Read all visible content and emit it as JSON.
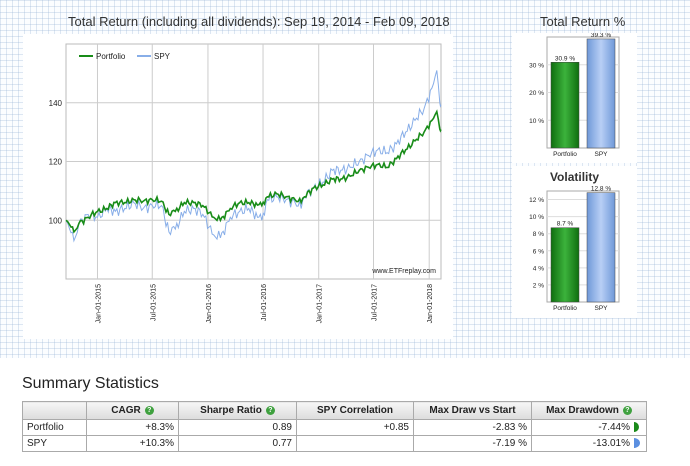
{
  "main_chart": {
    "title": "Total Return (including all dividends): Sep 19, 2014 - Feb 09, 2018",
    "watermark": "www.ETFreplay.com",
    "legend": [
      "Portfolio",
      "SPY"
    ],
    "y_ticks": [
      "100",
      "120",
      "140"
    ],
    "x_ticks": [
      "Jan-01-2015",
      "Jul-01-2015",
      "Jan-01-2016",
      "Jul-01-2016",
      "Jan-01-2017",
      "Jul-01-2017",
      "Jan-01-2018"
    ]
  },
  "colors": {
    "portfolio": "#188c18",
    "spy": "#88aee8",
    "help_icon": "#3fa13f",
    "pie_green": "#1a8a1a",
    "pie_blue": "#5b8fe0"
  },
  "chart_data": [
    {
      "type": "line",
      "title": "Total Return (including all dividends): Sep 19, 2014 - Feb 09, 2018",
      "x_unit": "date",
      "ylim": [
        80,
        160
      ],
      "y_ticks": [
        100,
        120,
        140
      ],
      "grid": true,
      "legend_position": "top-left",
      "series": [
        {
          "name": "Portfolio",
          "color": "#188c18",
          "points": [
            [
              "2014-09-19",
              100
            ],
            [
              "2014-10-01",
              98.5
            ],
            [
              "2014-10-15",
              96
            ],
            [
              "2014-11-01",
              99
            ],
            [
              "2014-12-01",
              101
            ],
            [
              "2015-01-01",
              103
            ],
            [
              "2015-02-01",
              104
            ],
            [
              "2015-03-01",
              106
            ],
            [
              "2015-04-01",
              106
            ],
            [
              "2015-05-01",
              107
            ],
            [
              "2015-06-01",
              106.5
            ],
            [
              "2015-07-01",
              107
            ],
            [
              "2015-08-01",
              106.5
            ],
            [
              "2015-08-25",
              102
            ],
            [
              "2015-09-15",
              103
            ],
            [
              "2015-10-15",
              106
            ],
            [
              "2015-11-15",
              106
            ],
            [
              "2015-12-15",
              105
            ],
            [
              "2016-01-20",
              101
            ],
            [
              "2016-02-11",
              100
            ],
            [
              "2016-03-15",
              104
            ],
            [
              "2016-04-15",
              106
            ],
            [
              "2016-05-15",
              106
            ],
            [
              "2016-06-27",
              105
            ],
            [
              "2016-07-15",
              108
            ],
            [
              "2016-08-15",
              109
            ],
            [
              "2016-09-15",
              108
            ],
            [
              "2016-10-15",
              107
            ],
            [
              "2016-11-04",
              106
            ],
            [
              "2016-11-15",
              108
            ],
            [
              "2016-12-15",
              111
            ],
            [
              "2017-01-15",
              112
            ],
            [
              "2017-02-15",
              114
            ],
            [
              "2017-03-15",
              114
            ],
            [
              "2017-04-15",
              115
            ],
            [
              "2017-05-15",
              117
            ],
            [
              "2017-06-15",
              118
            ],
            [
              "2017-07-15",
              119
            ],
            [
              "2017-08-15",
              118
            ],
            [
              "2017-09-15",
              121
            ],
            [
              "2017-10-15",
              124
            ],
            [
              "2017-11-15",
              127
            ],
            [
              "2017-12-15",
              130
            ],
            [
              "2018-01-10",
              134
            ],
            [
              "2018-01-26",
              137
            ],
            [
              "2018-02-05",
              131
            ],
            [
              "2018-02-09",
              130.9
            ]
          ]
        },
        {
          "name": "SPY",
          "color": "#88aee8",
          "points": [
            [
              "2014-09-19",
              100
            ],
            [
              "2014-10-01",
              97
            ],
            [
              "2014-10-15",
              93
            ],
            [
              "2014-11-01",
              99
            ],
            [
              "2014-12-01",
              102
            ],
            [
              "2015-01-01",
              101
            ],
            [
              "2015-02-01",
              104
            ],
            [
              "2015-03-01",
              103
            ],
            [
              "2015-04-01",
              104
            ],
            [
              "2015-05-01",
              106
            ],
            [
              "2015-06-01",
              104
            ],
            [
              "2015-07-01",
              105
            ],
            [
              "2015-08-01",
              105
            ],
            [
              "2015-08-25",
              96
            ],
            [
              "2015-09-15",
              97
            ],
            [
              "2015-10-15",
              103
            ],
            [
              "2015-11-15",
              104
            ],
            [
              "2015-12-15",
              102
            ],
            [
              "2016-01-20",
              95
            ],
            [
              "2016-02-11",
              94
            ],
            [
              "2016-03-15",
              101
            ],
            [
              "2016-04-15",
              103
            ],
            [
              "2016-05-15",
              104
            ],
            [
              "2016-06-27",
              100
            ],
            [
              "2016-07-15",
              107
            ],
            [
              "2016-08-15",
              108
            ],
            [
              "2016-09-15",
              107
            ],
            [
              "2016-10-15",
              106
            ],
            [
              "2016-11-04",
              104
            ],
            [
              "2016-11-15",
              108
            ],
            [
              "2016-12-15",
              111
            ],
            [
              "2017-01-15",
              113
            ],
            [
              "2017-02-15",
              117
            ],
            [
              "2017-03-15",
              117
            ],
            [
              "2017-04-15",
              118
            ],
            [
              "2017-05-15",
              120
            ],
            [
              "2017-06-15",
              122
            ],
            [
              "2017-07-15",
              124
            ],
            [
              "2017-08-15",
              123
            ],
            [
              "2017-09-15",
              126
            ],
            [
              "2017-10-15",
              130
            ],
            [
              "2017-11-15",
              134
            ],
            [
              "2017-12-15",
              138
            ],
            [
              "2018-01-10",
              145
            ],
            [
              "2018-01-26",
              151
            ],
            [
              "2018-02-05",
              140
            ],
            [
              "2018-02-09",
              139.3
            ]
          ]
        }
      ]
    },
    {
      "type": "bar",
      "title": "Total Return %",
      "categories": [
        "Portfolio",
        "SPY"
      ],
      "values": [
        30.9,
        39.3
      ],
      "data_labels": [
        "30.9 %",
        "39.3 %"
      ],
      "ylim": [
        0,
        40
      ],
      "y_ticks": [
        "10 %",
        "20 %",
        "30 %"
      ]
    },
    {
      "type": "bar",
      "title": "Volatility",
      "categories": [
        "Portfolio",
        "SPY"
      ],
      "values": [
        8.7,
        12.8
      ],
      "data_labels": [
        "8.7 %",
        "12.8 %"
      ],
      "ylim": [
        0,
        13
      ],
      "y_ticks": [
        "2 %",
        "4 %",
        "6 %",
        "8 %",
        "10 %",
        "12 %"
      ]
    }
  ],
  "summary": {
    "title": "Summary Statistics",
    "headers": [
      "",
      "CAGR",
      "Sharpe Ratio",
      "SPY Correlation",
      "Max Draw vs Start",
      "Max Drawdown"
    ],
    "help_headers": [
      false,
      true,
      true,
      false,
      false,
      true
    ],
    "help_glyph": "?",
    "rows": [
      {
        "name": "Portfolio",
        "values": [
          "+8.3%",
          "0.89",
          "+0.85",
          "-2.83 %",
          "-7.44%"
        ],
        "drawdown_fraction": 0.744
      },
      {
        "name": "SPY",
        "values": [
          "+10.3%",
          "0.77",
          "",
          "-7.19 %",
          "-13.01%"
        ],
        "drawdown_fraction": 1.0
      }
    ]
  }
}
